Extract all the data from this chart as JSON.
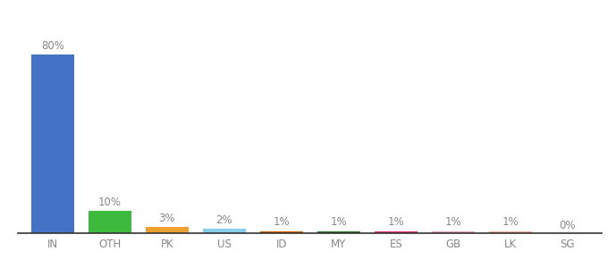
{
  "categories": [
    "IN",
    "OTH",
    "PK",
    "US",
    "ID",
    "MY",
    "ES",
    "GB",
    "LK",
    "SG"
  ],
  "values": [
    80,
    10,
    3,
    2,
    1,
    1,
    1,
    1,
    1,
    0
  ],
  "labels": [
    "80%",
    "10%",
    "3%",
    "2%",
    "1%",
    "1%",
    "1%",
    "1%",
    "1%",
    "0%"
  ],
  "colors": [
    "#4472c4",
    "#3dba3d",
    "#f0a030",
    "#87ceeb",
    "#c85a00",
    "#2a6e2a",
    "#e0306e",
    "#e8a0b0",
    "#f0a898",
    "#cccccc"
  ],
  "ylim": [
    0,
    90
  ],
  "background_color": "#ffffff",
  "bar_width": 0.75,
  "label_color": "#888888",
  "tick_color": "#888888",
  "label_fontsize": 8.5,
  "tick_fontsize": 8.5
}
